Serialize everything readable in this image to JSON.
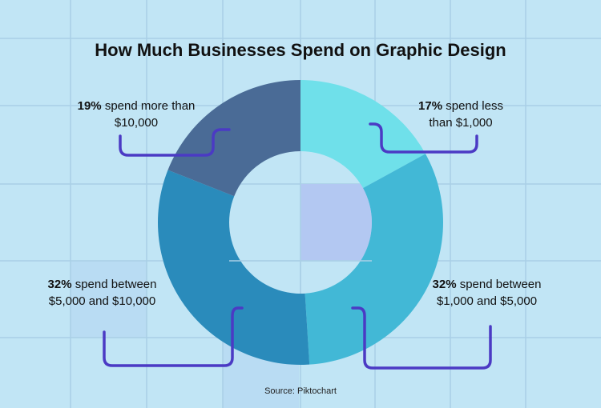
{
  "chart_data": {
    "type": "pie",
    "donut": true,
    "title": "How Much Businesses Spend on Graphic Design",
    "source": "Source: Piktochart",
    "slices": [
      {
        "value": 17,
        "pct_label": "17%",
        "text": "spend less than $1,000",
        "color": "#6fe0ea"
      },
      {
        "value": 32,
        "pct_label": "32%",
        "text": "spend between $1,000 and $5,000",
        "color": "#42b8d6"
      },
      {
        "value": 32,
        "pct_label": "32%",
        "text": "spend between $5,000 and $10,000",
        "color": "#2a8bbb"
      },
      {
        "value": 19,
        "pct_label": "19%",
        "text": "spend more than $10,000",
        "color": "#4a6b96"
      }
    ]
  },
  "colors": {
    "background": "#c1e5f5",
    "grid": "#a9cfe6",
    "connector": "#4b3ac4",
    "highlight": "#b3c8f2"
  }
}
